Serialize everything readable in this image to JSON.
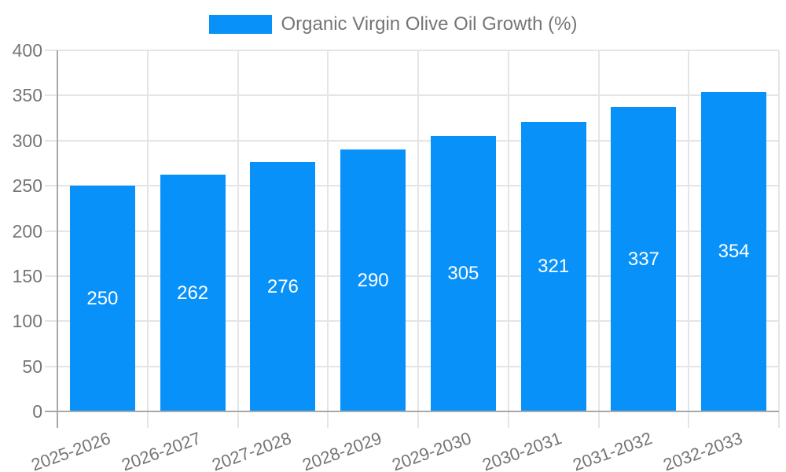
{
  "legend": {
    "label": "Organic Virgin Olive Oil Growth (%)"
  },
  "chart_data": {
    "type": "bar",
    "title": "Organic Virgin Olive Oil Growth (%)",
    "categories": [
      "2025-2026",
      "2026-2027",
      "2027-2028",
      "2028-2029",
      "2029-2030",
      "2030-2031",
      "2031-2032",
      "2032-2033"
    ],
    "values": [
      250,
      262,
      276,
      290,
      305,
      321,
      337,
      354
    ],
    "value_labels": [
      "250",
      "262",
      "276",
      "290",
      "305",
      "321",
      "337",
      "354"
    ],
    "xlabel": "",
    "ylabel": "",
    "ylim": [
      0,
      400
    ],
    "yticks": [
      0,
      50,
      100,
      150,
      200,
      250,
      300,
      350,
      400
    ],
    "grid": true,
    "legend_position": "top",
    "x_label_rotation_deg": -20,
    "colors": {
      "bar": "#0991fa",
      "value_label": "#ffffff",
      "grid": "#e5e5e5",
      "axis": "#a8a8a8",
      "tick_text": "#757575",
      "legend_text": "#757575",
      "background": "#ffffff"
    }
  }
}
